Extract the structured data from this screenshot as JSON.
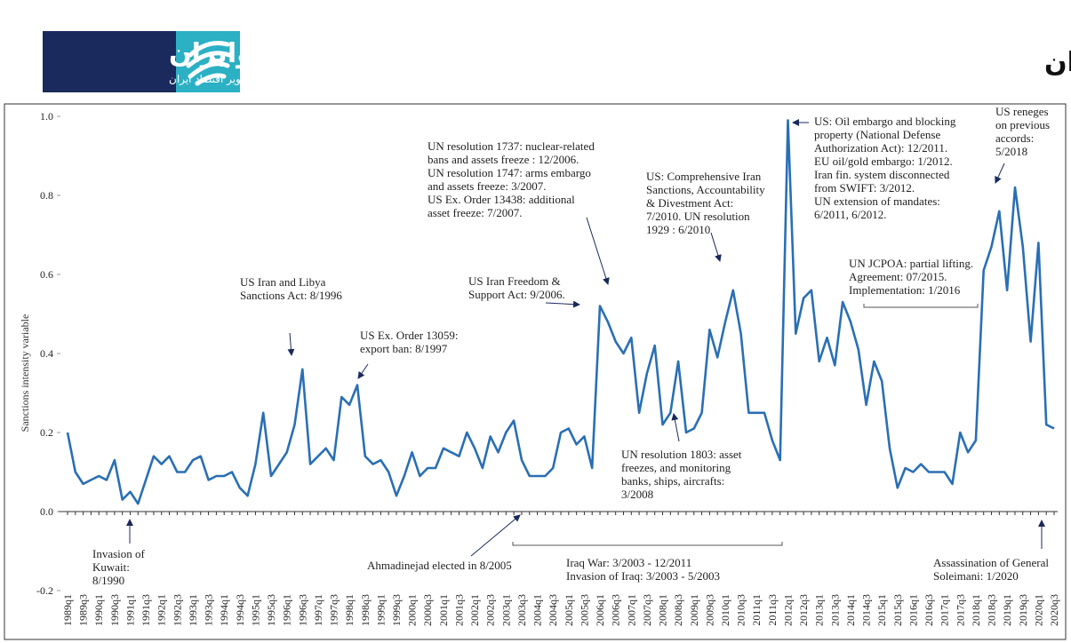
{
  "header": {
    "title": "تبارشناسی و شدت تحریم‌ها علیه ایران",
    "logo_name": "اکوایران",
    "logo_tagline": "تصویر اقتصاد ایران"
  },
  "chart_data": {
    "type": "line",
    "ylabel": "Sanctions intensity variable",
    "categories": [
      "1989q1",
      null,
      "1989q3",
      null,
      "1990q1",
      null,
      "1990q3",
      null,
      "1991q1",
      null,
      "1991q3",
      null,
      "1992q1",
      null,
      "1992q3",
      null,
      "1993q1",
      null,
      "1993q3",
      null,
      "1994q1",
      null,
      "1994q3",
      null,
      "1995q1",
      null,
      "1995q3",
      null,
      "1996q1",
      null,
      "1996q3",
      null,
      "1997q1",
      null,
      "1997q3",
      null,
      "1998q1",
      null,
      "1998q3",
      null,
      "1999q1",
      null,
      "1999q3",
      null,
      "2000q1",
      null,
      "2000q3",
      null,
      "2001q1",
      null,
      "2001q3",
      null,
      "2002q1",
      null,
      "2002q3",
      null,
      "2003q1",
      null,
      "2003q3",
      null,
      "2004q1",
      null,
      "2004q3",
      null,
      "2005q1",
      null,
      "2005q3",
      null,
      "2006q1",
      null,
      "2006q3",
      null,
      "2007q1",
      null,
      "2007q3",
      null,
      "2008q1",
      null,
      "2008q3",
      null,
      "2009q1",
      null,
      "2009q3",
      null,
      "2010q1",
      null,
      "2010q3",
      null,
      "2011q1",
      null,
      "2011q3",
      null,
      "2012q1",
      null,
      "2012q3",
      null,
      "2013q1",
      null,
      "2013q3",
      null,
      "2014q1",
      null,
      "2014q3",
      null,
      "2015q1",
      null,
      "2015q3",
      null,
      "2016q1",
      null,
      "2016q3",
      null,
      "2017q1",
      null,
      "2017q3",
      null,
      "2018q1",
      null,
      "2018q3",
      null,
      "2019q1",
      null,
      "2019q3",
      null,
      "2020q1",
      null,
      "2020q3"
    ],
    "values": [
      0.2,
      0.1,
      0.07,
      0.08,
      0.09,
      0.08,
      0.13,
      0.03,
      0.05,
      0.02,
      0.08,
      0.14,
      0.12,
      0.14,
      0.1,
      0.1,
      0.13,
      0.14,
      0.08,
      0.09,
      0.09,
      0.1,
      0.06,
      0.04,
      0.12,
      0.25,
      0.09,
      0.12,
      0.15,
      0.22,
      0.36,
      0.12,
      0.14,
      0.16,
      0.13,
      0.29,
      0.27,
      0.32,
      0.14,
      0.12,
      0.13,
      0.1,
      0.04,
      0.09,
      0.15,
      0.09,
      0.11,
      0.11,
      0.16,
      0.15,
      0.14,
      0.2,
      0.16,
      0.11,
      0.19,
      0.15,
      0.2,
      0.23,
      0.13,
      0.09,
      0.09,
      0.09,
      0.11,
      0.2,
      0.21,
      0.17,
      0.19,
      0.11,
      0.52,
      0.48,
      0.43,
      0.4,
      0.44,
      0.25,
      0.35,
      0.42,
      0.22,
      0.25,
      0.38,
      0.2,
      0.21,
      0.25,
      0.46,
      0.39,
      0.48,
      0.56,
      0.45,
      0.25,
      0.25,
      0.25,
      0.18,
      0.13,
      0.99,
      0.45,
      0.54,
      0.56,
      0.38,
      0.44,
      0.37,
      0.53,
      0.48,
      0.41,
      0.27,
      0.38,
      0.33,
      0.16,
      0.06,
      0.11,
      0.1,
      0.12,
      0.1,
      0.1,
      0.1,
      0.07,
      0.2,
      0.15,
      0.18,
      0.61,
      0.67,
      0.76,
      0.56,
      0.82,
      0.67,
      0.43,
      0.68,
      0.22,
      0.21
    ],
    "color": "#2a6fb4",
    "ylim": [
      -0.2,
      1.0
    ],
    "yticks": [
      {
        "value": -0.2,
        "label": "-0.2"
      },
      {
        "value": 0,
        "label": "0.0"
      },
      {
        "value": 0.2,
        "label": "0.2"
      },
      {
        "value": 0.4,
        "label": "0.4"
      },
      {
        "value": 0.6,
        "label": "0.6"
      },
      {
        "value": 0.8,
        "label": "0.8"
      },
      {
        "value": 1.0,
        "label": "1.0"
      }
    ],
    "grid": false,
    "annotations": [
      {
        "lines": [
          "Invasion of",
          "Kuwait:",
          "8/1990"
        ]
      },
      {
        "lines": [
          "Ahmadinejad elected in 8/2005"
        ]
      },
      {
        "lines": [
          "Iraq War: 3/2003 - 12/2011",
          "Invasion of Iraq: 3/2003 - 5/2003"
        ]
      },
      {
        "lines": [
          "US Iran and Libya",
          "Sanctions Act: 8/1996"
        ]
      },
      {
        "lines": [
          "US Ex. Order 13059:",
          "export ban: 8/1997"
        ]
      },
      {
        "lines": [
          "UN resolution 1737: nuclear-related",
          "bans and assets freeze : 12/2006.",
          "UN resolution 1747: arms embargo",
          "and assets freeze: 3/2007.",
          "US Ex. Order 13438: additional",
          "asset freeze: 7/2007."
        ]
      },
      {
        "lines": [
          "US Iran Freedom &",
          "Support Act: 9/2006."
        ]
      },
      {
        "lines": [
          "US:  Comprehensive Iran",
          "Sanctions, Accountability",
          "& Divestment Act:",
          "7/2010. UN resolution",
          "1929 : 6/2010"
        ]
      },
      {
        "lines": [
          "UN resolution 1803: asset",
          "freezes, and monitoring",
          "banks, ships, aircrafts:",
          "3/2008"
        ]
      },
      {
        "lines": [
          "US: Oil embargo and blocking",
          "property (National Defense",
          "Authorization Act): 12/2011.",
          "EU oil/gold embargo: 1/2012.",
          "Iran fin. system disconnected",
          "from SWIFT: 3/2012.",
          "UN extension of mandates:",
          "6/2011, 6/2012."
        ]
      },
      {
        "lines": [
          "UN JCPOA: partial lifting.",
          "Agreement: 07/2015.",
          "Implementation: 1/2016"
        ]
      },
      {
        "lines": [
          "US reneges",
          "on previous",
          "accords:",
          "5/2018"
        ]
      },
      {
        "lines": [
          "Assassination of General",
          "Soleimani:  1/2020"
        ]
      }
    ]
  }
}
